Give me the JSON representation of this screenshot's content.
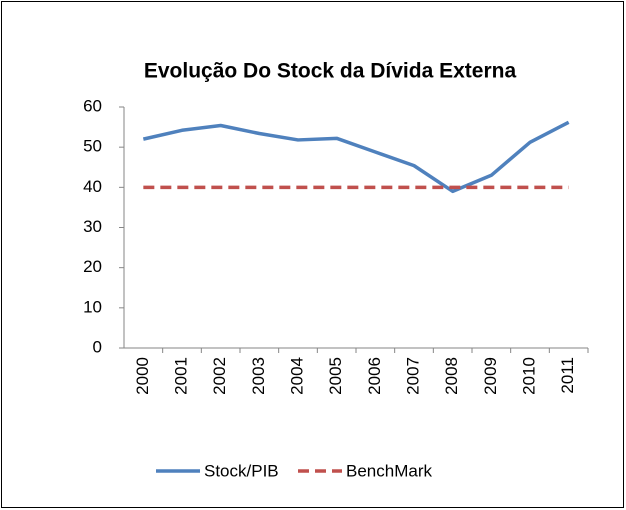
{
  "chart_data": {
    "type": "line",
    "title": "Evolução Do Stock da Dívida Externa",
    "categories": [
      "2000",
      "2001",
      "2002",
      "2003",
      "2004",
      "2005",
      "2006",
      "2007",
      "2008",
      "2009",
      "2010",
      "2011"
    ],
    "series": [
      {
        "name": "Stock/PIB",
        "color": "#4f81bd",
        "dash": "solid",
        "values": [
          52,
          54.2,
          55.4,
          53.4,
          51.8,
          52.2,
          48.8,
          45.4,
          39,
          43,
          51.2,
          56.2
        ]
      },
      {
        "name": "BenchMark",
        "color": "#c0504d",
        "dash": "dashed",
        "values": [
          40,
          40,
          40,
          40,
          40,
          40,
          40,
          40,
          40,
          40,
          40,
          40
        ]
      }
    ],
    "ylim": [
      0,
      60
    ],
    "yticks": [
      0,
      10,
      20,
      30,
      40,
      50,
      60
    ],
    "grid": false,
    "legend": "bottom"
  }
}
